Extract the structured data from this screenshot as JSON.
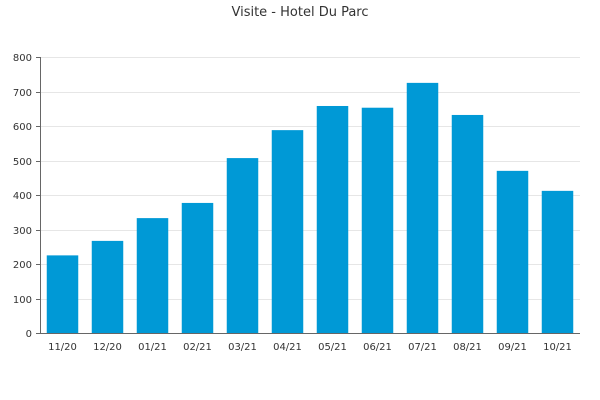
{
  "chart_data": {
    "type": "bar",
    "title": "Visite - Hotel Du Parc",
    "xlabel": "",
    "ylabel": "",
    "categories": [
      "11/20",
      "12/20",
      "01/21",
      "02/21",
      "03/21",
      "04/21",
      "05/21",
      "06/21",
      "07/21",
      "08/21",
      "09/21",
      "10/21"
    ],
    "values": [
      225,
      267,
      333,
      377,
      507,
      588,
      658,
      653,
      725,
      632,
      470,
      412
    ],
    "ylim": [
      0,
      800
    ],
    "yticks": [
      0,
      100,
      200,
      300,
      400,
      500,
      600,
      700,
      800
    ],
    "grid": true,
    "bar_color": "#0099d6"
  }
}
